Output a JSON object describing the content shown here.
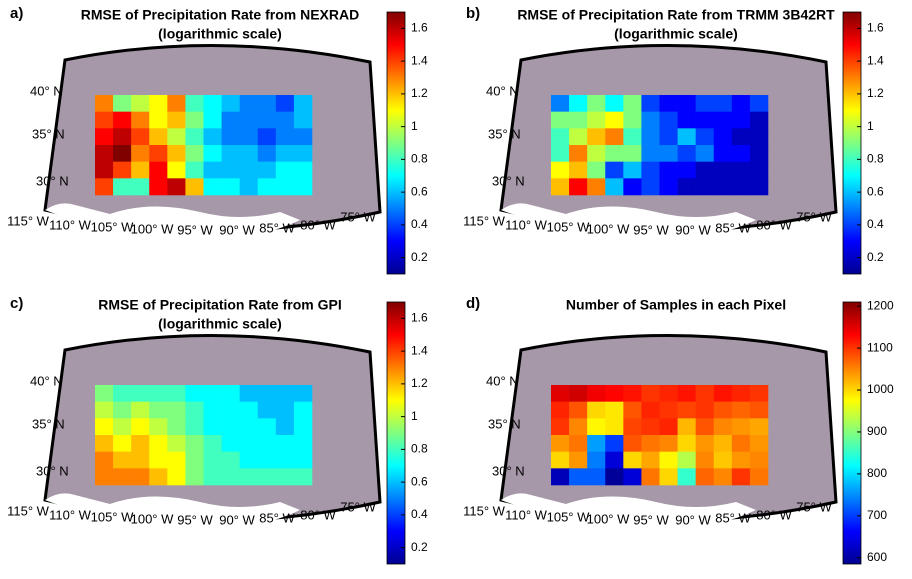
{
  "map": {
    "lat_labels": [
      "40° N",
      "35° N",
      "30° N"
    ],
    "lon_labels": [
      "115° W",
      "110° W",
      "105° W",
      "100° W",
      "95° W",
      "90° W",
      "85° W",
      "80° W",
      "75° W"
    ]
  },
  "chart_data": [
    {
      "type": "heatmap",
      "panel_label": "a)",
      "title": "RMSE of Precipitation Rate from NEXRAD",
      "subtitle": "(logarithmic scale)",
      "colormap": "jet",
      "clim": [
        0.1,
        1.7
      ],
      "cticks": [
        0.2,
        0.4,
        0.6,
        0.8,
        1,
        1.2,
        1.4,
        1.6
      ],
      "values": [
        [
          1.3,
          0.9,
          1.0,
          1.1,
          1.3,
          0.8,
          0.7,
          0.6,
          0.5,
          0.5,
          0.4,
          0.6
        ],
        [
          1.4,
          1.5,
          1.3,
          1.1,
          1.2,
          0.9,
          0.7,
          0.5,
          0.5,
          0.5,
          0.5,
          0.6
        ],
        [
          1.5,
          1.6,
          1.4,
          1.2,
          1.0,
          0.8,
          0.6,
          0.5,
          0.5,
          0.4,
          0.5,
          0.5
        ],
        [
          1.6,
          1.7,
          1.3,
          1.4,
          1.2,
          0.9,
          0.7,
          0.6,
          0.6,
          0.5,
          0.6,
          0.6
        ],
        [
          1.6,
          1.4,
          1.2,
          1.5,
          1.1,
          0.8,
          0.6,
          0.6,
          0.6,
          0.6,
          0.7,
          0.7
        ],
        [
          1.4,
          0.8,
          0.8,
          1.5,
          1.6,
          1.2,
          0.7,
          0.7,
          0.6,
          0.7,
          0.7,
          0.7
        ]
      ]
    },
    {
      "type": "heatmap",
      "panel_label": "b)",
      "title": "RMSE of Precipitation Rate from TRMM 3B42RT",
      "subtitle": "(logarithmic scale)",
      "colormap": "jet",
      "clim": [
        0.1,
        1.7
      ],
      "cticks": [
        0.2,
        0.4,
        0.6,
        0.8,
        1,
        1.2,
        1.4,
        1.6
      ],
      "values": [
        [
          0.5,
          0.7,
          0.9,
          0.7,
          0.9,
          0.4,
          0.3,
          0.3,
          0.4,
          0.4,
          0.3,
          0.4
        ],
        [
          0.9,
          0.9,
          1.0,
          1.1,
          0.9,
          0.5,
          0.4,
          0.3,
          0.3,
          0.3,
          0.3,
          0.2
        ],
        [
          0.8,
          1.0,
          1.2,
          1.3,
          0.8,
          0.5,
          0.4,
          0.6,
          0.4,
          0.3,
          0.2,
          0.2
        ],
        [
          0.8,
          1.3,
          1.0,
          0.9,
          0.9,
          0.5,
          0.5,
          0.4,
          0.5,
          0.3,
          0.3,
          0.2
        ],
        [
          1.1,
          1.2,
          0.9,
          0.4,
          0.6,
          0.4,
          0.3,
          0.3,
          0.2,
          0.2,
          0.2,
          0.2
        ],
        [
          1.2,
          1.5,
          1.3,
          0.6,
          0.3,
          0.4,
          0.3,
          0.2,
          0.2,
          0.2,
          0.2,
          0.2
        ]
      ]
    },
    {
      "type": "heatmap",
      "panel_label": "c)",
      "title": "RMSE of Precipitation Rate from GPI",
      "subtitle": "(logarithmic scale)",
      "colormap": "jet",
      "clim": [
        0.1,
        1.7
      ],
      "cticks": [
        0.2,
        0.4,
        0.6,
        0.8,
        1,
        1.2,
        1.4,
        1.6
      ],
      "values": [
        [
          0.9,
          0.8,
          0.8,
          0.8,
          0.8,
          0.7,
          0.7,
          0.7,
          0.6,
          0.6,
          0.6,
          0.6
        ],
        [
          1.0,
          0.9,
          1.0,
          0.9,
          0.9,
          0.8,
          0.7,
          0.7,
          0.7,
          0.6,
          0.6,
          0.7
        ],
        [
          1.1,
          1.0,
          1.1,
          1.0,
          0.9,
          0.8,
          0.7,
          0.7,
          0.7,
          0.7,
          0.6,
          0.7
        ],
        [
          1.2,
          1.1,
          1.2,
          1.1,
          1.0,
          0.9,
          0.8,
          0.7,
          0.7,
          0.7,
          0.7,
          0.7
        ],
        [
          1.3,
          1.2,
          1.2,
          1.1,
          1.1,
          0.9,
          0.8,
          0.8,
          0.7,
          0.7,
          0.7,
          0.7
        ],
        [
          1.3,
          1.3,
          1.3,
          1.2,
          1.1,
          0.9,
          0.8,
          0.8,
          0.8,
          0.8,
          0.8,
          0.8
        ]
      ]
    },
    {
      "type": "heatmap",
      "panel_label": "d)",
      "title": "Number of Samples in each Pixel",
      "colormap": "jet",
      "clim": [
        585,
        1210
      ],
      "cticks": [
        600,
        700,
        800,
        900,
        1000,
        1100,
        1200
      ],
      "values": [
        [
          1150,
          1160,
          1140,
          1130,
          1120,
          1100,
          1110,
          1120,
          1100,
          1120,
          1110,
          1100
        ],
        [
          1110,
          1080,
          1000,
          990,
          1080,
          1110,
          1100,
          1090,
          1100,
          1080,
          1070,
          1080
        ],
        [
          1100,
          1050,
          980,
          990,
          1090,
          1100,
          1110,
          1020,
          1080,
          1050,
          1040,
          1030
        ],
        [
          1040,
          1060,
          760,
          700,
          1080,
          1060,
          1050,
          1000,
          1040,
          1020,
          1060,
          1040
        ],
        [
          1000,
          1040,
          740,
          640,
          1000,
          1030,
          980,
          930,
          1050,
          1010,
          1040,
          1050
        ],
        [
          620,
          720,
          720,
          600,
          640,
          1060,
          1000,
          850,
          1070,
          1050,
          1100,
          1060
        ]
      ]
    }
  ]
}
